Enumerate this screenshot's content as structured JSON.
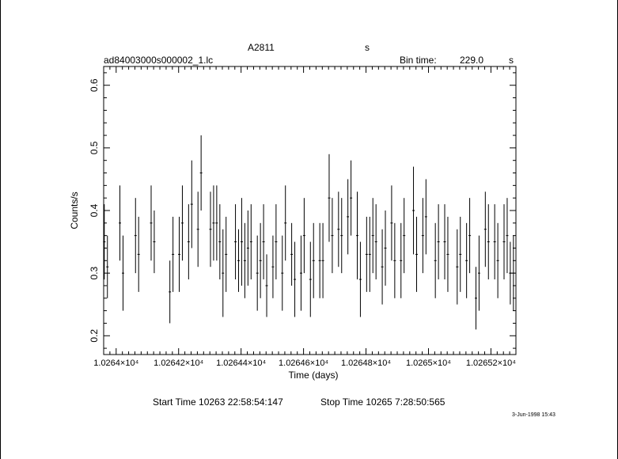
{
  "header": {
    "object": "A2811",
    "object_suffix": "s",
    "filename": "ad84003000s000002_1.lc",
    "bin_time_label": "Bin time:",
    "bin_time_value": "229.0",
    "bin_time_unit": "s"
  },
  "footer": {
    "start_time": "Start Time 10263 22:58:54:147",
    "stop_time": "Stop Time 10265  7:28:50:565",
    "date_stamp": "3-Jun-1998 15:43"
  },
  "chart_data": {
    "type": "scatter",
    "xlabel": "Time (days)",
    "ylabel": "Counts/s",
    "xlim": [
      10263.96,
      10265.28
    ],
    "ylim": [
      0.17,
      0.63
    ],
    "x_ticks": [
      {
        "value": 10264.0,
        "label": "1.0264×10⁴"
      },
      {
        "value": 10264.2,
        "label": "1.02642×10⁴"
      },
      {
        "value": 10264.4,
        "label": "1.02644×10⁴"
      },
      {
        "value": 10264.6,
        "label": "1.02646×10⁴"
      },
      {
        "value": 10264.8,
        "label": "1.02648×10⁴"
      },
      {
        "value": 10265.0,
        "label": "1.0265×10⁴"
      },
      {
        "value": 10265.2,
        "label": "1.02652×10⁴"
      }
    ],
    "y_ticks": [
      {
        "value": 0.2,
        "label": "0.2"
      },
      {
        "value": 0.3,
        "label": "0.3"
      },
      {
        "value": 0.4,
        "label": "0.4"
      },
      {
        "value": 0.5,
        "label": "0.5"
      },
      {
        "value": 0.6,
        "label": "0.6"
      }
    ],
    "x": [
      10263.962,
      10263.972,
      10264.012,
      10264.022,
      10264.062,
      10264.072,
      10264.112,
      10264.122,
      10264.172,
      10264.182,
      10264.202,
      10264.212,
      10264.232,
      10264.242,
      10264.262,
      10264.272,
      10264.302,
      10264.312,
      10264.322,
      10264.332,
      10264.342,
      10264.352,
      10264.382,
      10264.392,
      10264.402,
      10264.412,
      10264.422,
      10264.432,
      10264.452,
      10264.462,
      10264.472,
      10264.482,
      10264.502,
      10264.512,
      10264.532,
      10264.542,
      10264.562,
      10264.572,
      10264.592,
      10264.602,
      10264.622,
      10264.632,
      10264.652,
      10264.662,
      10264.682,
      10264.692,
      10264.712,
      10264.722,
      10264.742,
      10264.752,
      10264.772,
      10264.782,
      10264.802,
      10264.812,
      10264.822,
      10264.832,
      10264.852,
      10264.862,
      10264.882,
      10264.892,
      10264.912,
      10264.922,
      10264.952,
      10264.962,
      10264.982,
      10264.992,
      10265.022,
      10265.032,
      10265.052,
      10265.062,
      10265.092,
      10265.102,
      10265.122,
      10265.132,
      10265.152,
      10265.162,
      10265.182,
      10265.192,
      10265.212,
      10265.222,
      10265.242,
      10265.252,
      10265.262,
      10265.272
    ],
    "y": [
      0.35,
      0.31,
      0.38,
      0.3,
      0.36,
      0.33,
      0.38,
      0.35,
      0.27,
      0.33,
      0.33,
      0.38,
      0.35,
      0.41,
      0.37,
      0.46,
      0.37,
      0.38,
      0.38,
      0.35,
      0.3,
      0.33,
      0.35,
      0.32,
      0.35,
      0.32,
      0.34,
      0.35,
      0.3,
      0.32,
      0.35,
      0.28,
      0.31,
      0.35,
      0.3,
      0.38,
      0.33,
      0.29,
      0.3,
      0.36,
      0.29,
      0.32,
      0.32,
      0.32,
      0.42,
      0.36,
      0.37,
      0.36,
      0.39,
      0.42,
      0.36,
      0.29,
      0.33,
      0.33,
      0.36,
      0.35,
      0.31,
      0.34,
      0.38,
      0.32,
      0.32,
      0.36,
      0.4,
      0.33,
      0.36,
      0.39,
      0.32,
      0.35,
      0.35,
      0.33,
      0.31,
      0.33,
      0.32,
      0.36,
      0.26,
      0.3,
      0.37,
      0.35,
      0.35,
      0.32,
      0.35,
      0.36,
      0.3,
      0.3
    ],
    "y_err": [
      0.06,
      0.05,
      0.06,
      0.06,
      0.06,
      0.06,
      0.06,
      0.05,
      0.05,
      0.06,
      0.06,
      0.06,
      0.06,
      0.07,
      0.06,
      0.06,
      0.06,
      0.06,
      0.06,
      0.06,
      0.07,
      0.06,
      0.06,
      0.05,
      0.07,
      0.06,
      0.06,
      0.06,
      0.06,
      0.06,
      0.06,
      0.05,
      0.05,
      0.06,
      0.06,
      0.06,
      0.05,
      0.06,
      0.06,
      0.06,
      0.06,
      0.06,
      0.06,
      0.06,
      0.07,
      0.06,
      0.06,
      0.06,
      0.06,
      0.06,
      0.07,
      0.06,
      0.06,
      0.06,
      0.06,
      0.06,
      0.06,
      0.06,
      0.06,
      0.06,
      0.06,
      0.06,
      0.07,
      0.06,
      0.06,
      0.06,
      0.06,
      0.06,
      0.06,
      0.06,
      0.06,
      0.06,
      0.06,
      0.06,
      0.05,
      0.06,
      0.06,
      0.06,
      0.06,
      0.06,
      0.06,
      0.06,
      0.05,
      0.06
    ],
    "grid": false,
    "legend": "none"
  }
}
